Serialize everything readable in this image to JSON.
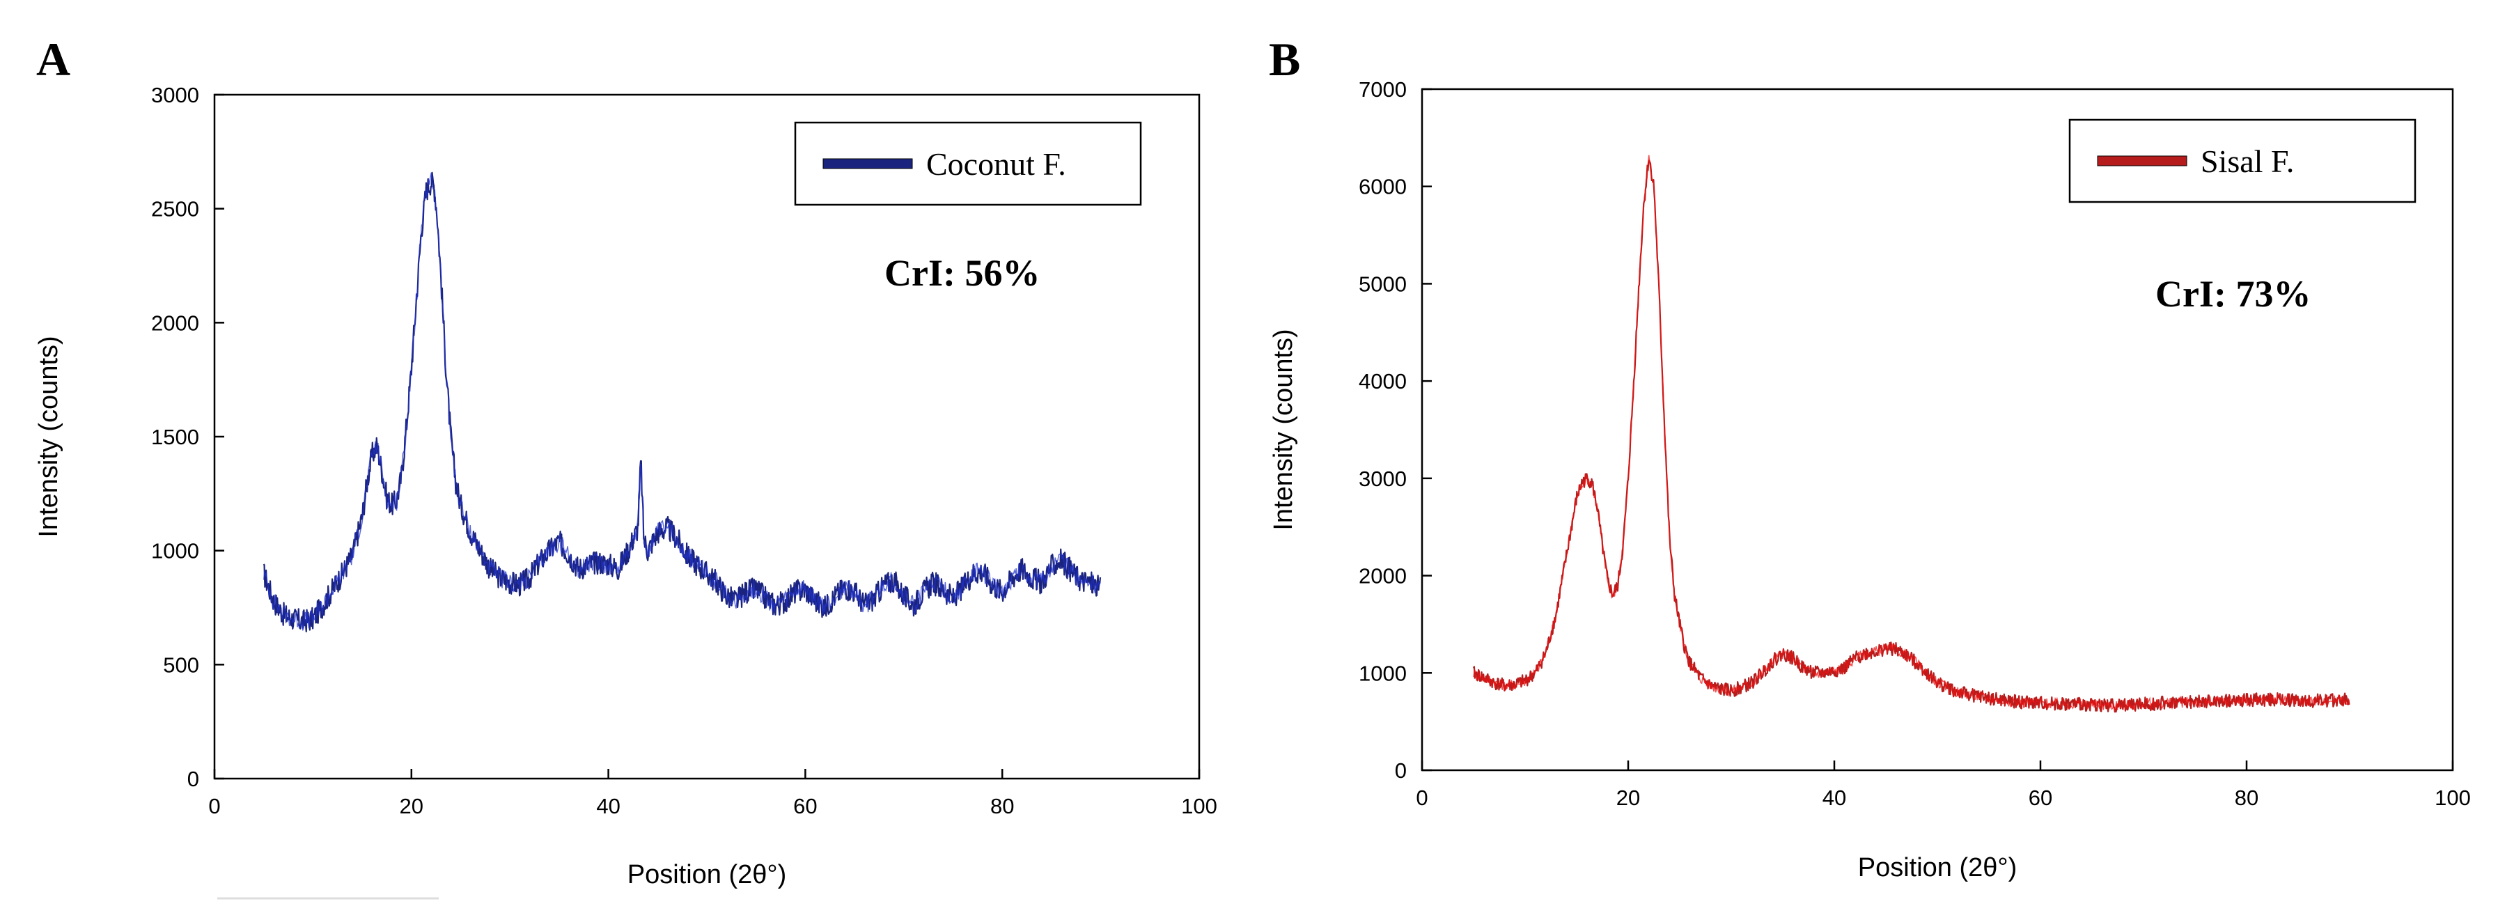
{
  "chart_data": [
    {
      "type": "line",
      "panel_label": "A",
      "title": "",
      "xlabel": "Position (2θ°)",
      "ylabel": "Intensity (counts)",
      "xlim": [
        0,
        100
      ],
      "ylim": [
        0,
        3000
      ],
      "xticks": [
        0,
        20,
        40,
        60,
        80,
        100
      ],
      "yticks": [
        0,
        500,
        1000,
        1500,
        2000,
        2500,
        3000
      ],
      "grid": false,
      "legend_position": "top-right",
      "annotation": "CrI: 56%",
      "series": [
        {
          "name": "Coconut F.",
          "color": "#1a237e",
          "highlight_color": "#2233cc",
          "x": [
            5,
            6,
            7,
            8,
            9,
            10,
            11,
            12,
            13,
            14,
            15,
            15.5,
            16,
            16.5,
            17,
            17.5,
            18,
            18.5,
            19,
            19.5,
            20,
            20.5,
            21,
            21.5,
            22,
            22.3,
            22.6,
            23,
            23.5,
            24,
            24.5,
            25,
            26,
            27,
            28,
            29,
            30,
            31,
            32,
            33,
            34,
            35,
            36,
            37,
            38,
            39,
            40,
            41,
            42,
            43,
            43.3,
            43.6,
            44,
            45,
            46,
            47,
            48,
            49,
            50,
            51,
            52,
            53,
            54,
            55,
            56,
            57,
            58,
            59,
            60,
            61,
            62,
            63,
            64,
            65,
            66,
            67,
            68,
            69,
            70,
            71,
            72,
            73,
            74,
            75,
            76,
            77,
            78,
            79,
            80,
            81,
            82,
            83,
            84,
            85,
            86,
            87,
            88,
            89,
            90
          ],
          "y": [
            900,
            780,
            720,
            700,
            690,
            700,
            760,
            830,
            900,
            980,
            1150,
            1300,
            1420,
            1460,
            1350,
            1230,
            1200,
            1220,
            1330,
            1550,
            1800,
            2100,
            2400,
            2580,
            2620,
            2600,
            2480,
            2200,
            1800,
            1500,
            1300,
            1200,
            1080,
            1000,
            920,
            880,
            860,
            850,
            880,
            950,
            1000,
            1040,
            980,
            920,
            940,
            950,
            940,
            920,
            1000,
            1100,
            1400,
            1050,
            1000,
            1080,
            1100,
            1050,
            980,
            940,
            900,
            860,
            800,
            780,
            820,
            830,
            790,
            760,
            780,
            820,
            830,
            780,
            750,
            800,
            840,
            820,
            760,
            790,
            850,
            870,
            800,
            760,
            820,
            860,
            830,
            790,
            840,
            900,
            910,
            850,
            820,
            880,
            920,
            880,
            860,
            930,
            960,
            910,
            870,
            860,
            830
          ]
        }
      ]
    },
    {
      "type": "line",
      "panel_label": "B",
      "title": "",
      "xlabel": "Position (2θ°)",
      "ylabel": "Intensity (counts)",
      "xlim": [
        0,
        100
      ],
      "ylim": [
        0,
        7000
      ],
      "xticks": [
        0,
        20,
        40,
        60,
        80,
        100
      ],
      "yticks": [
        0,
        1000,
        2000,
        3000,
        4000,
        5000,
        6000,
        7000
      ],
      "grid": false,
      "legend_position": "top-right",
      "annotation": "CrI: 73%",
      "series": [
        {
          "name": "Sisal F.",
          "color": "#b71c1c",
          "highlight_color": "#ee1111",
          "x": [
            5,
            6,
            7,
            8,
            9,
            10,
            11,
            12,
            13,
            14,
            15,
            15.5,
            16,
            16.5,
            17,
            17.5,
            18,
            18.5,
            19,
            19.5,
            20,
            20.5,
            21,
            21.5,
            22,
            22.5,
            23,
            23.5,
            24,
            24.5,
            25,
            25.5,
            26,
            27,
            28,
            29,
            30,
            31,
            32,
            33,
            34,
            35,
            36,
            37,
            38,
            39,
            40,
            41,
            42,
            43,
            44,
            45,
            46,
            47,
            48,
            49,
            50,
            52,
            54,
            56,
            58,
            60,
            62,
            64,
            66,
            68,
            70,
            72,
            74,
            76,
            78,
            80,
            82,
            84,
            86,
            88,
            90
          ],
          "y": [
            1000,
            950,
            900,
            870,
            880,
            920,
            1000,
            1200,
            1600,
            2200,
            2800,
            2950,
            3000,
            2950,
            2700,
            2300,
            1950,
            1800,
            1900,
            2300,
            3000,
            3900,
            4900,
            5800,
            6300,
            6000,
            4900,
            3600,
            2400,
            1800,
            1500,
            1250,
            1100,
            950,
            870,
            830,
            820,
            850,
            900,
            1000,
            1120,
            1200,
            1150,
            1050,
            1000,
            1000,
            1020,
            1050,
            1150,
            1200,
            1220,
            1250,
            1240,
            1180,
            1100,
            1000,
            900,
            800,
            760,
            720,
            700,
            690,
            680,
            680,
            670,
            670,
            680,
            690,
            700,
            700,
            710,
            720,
            730,
            720,
            710,
            720,
            730
          ]
        }
      ]
    }
  ]
}
